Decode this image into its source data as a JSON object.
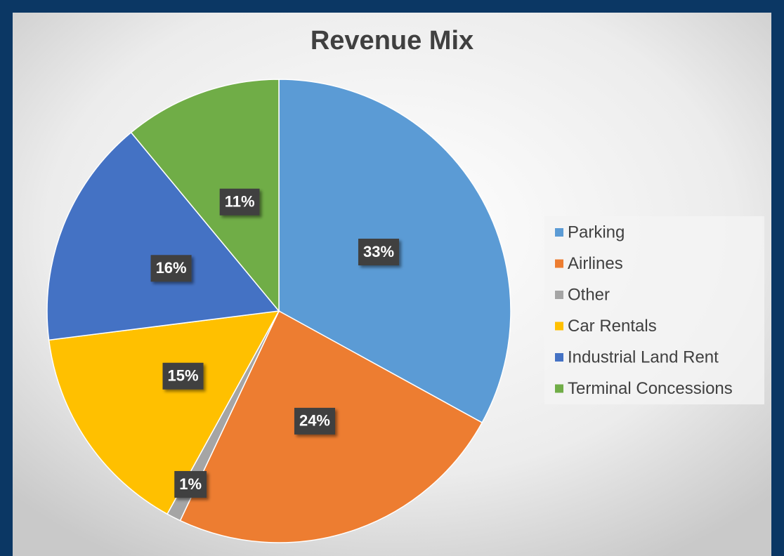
{
  "chart_data": {
    "type": "pie",
    "title": "Revenue Mix",
    "categories": [
      "Parking",
      "Airlines",
      "Other",
      "Car Rentals",
      "Industrial Land Rent",
      "Terminal Concessions"
    ],
    "values": [
      33,
      24,
      1,
      15,
      16,
      11
    ],
    "value_labels": [
      "33%",
      "24%",
      "1%",
      "15%",
      "16%",
      "11%"
    ],
    "colors": [
      "#5b9bd5",
      "#ed7d31",
      "#a5a5a5",
      "#ffc000",
      "#4472c4",
      "#70ad47"
    ],
    "legend": "right"
  }
}
